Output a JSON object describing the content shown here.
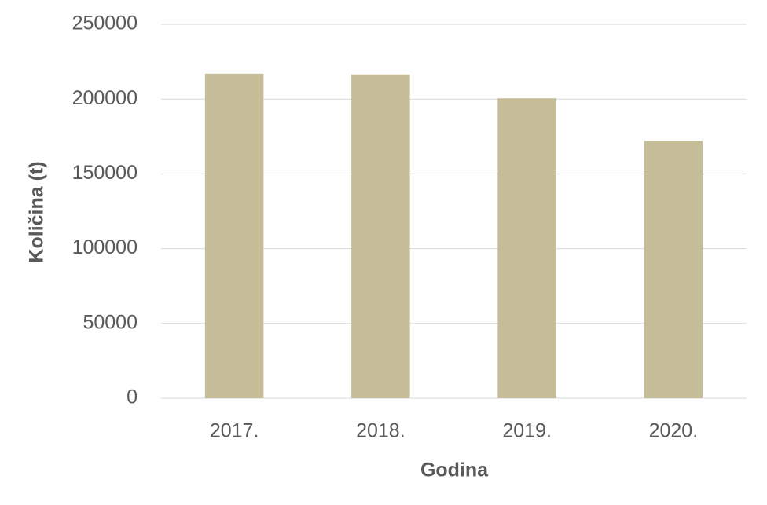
{
  "chart_data": {
    "type": "bar",
    "x_label": "Godina",
    "y_label": "Količina (t)",
    "categories": [
      "2017.",
      "2018.",
      "2019.",
      "2020."
    ],
    "values": [
      217000,
      216500,
      200500,
      172000
    ],
    "color": "#c4bd97",
    "ylim": [
      0,
      250000
    ],
    "yticks": [
      0,
      50000,
      100000,
      150000,
      200000,
      250000
    ],
    "grid": true
  }
}
